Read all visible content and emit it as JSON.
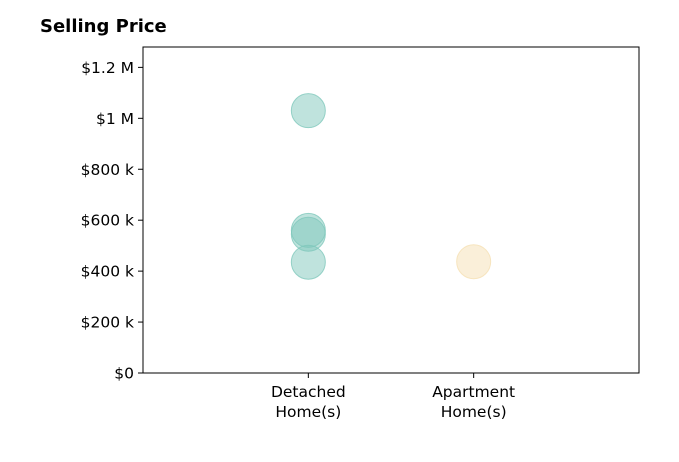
{
  "chart_data": {
    "type": "scatter",
    "title": "Selling Price",
    "xlabel": "",
    "ylabel": "",
    "categories": [
      "Detached\nHome(s)",
      "Apartment\nHome(s)"
    ],
    "xlim": [
      -1,
      2
    ],
    "ylim": [
      0,
      1280000
    ],
    "yticks": [
      0,
      200000,
      400000,
      600000,
      800000,
      1000000,
      1200000
    ],
    "ytick_labels": [
      "$0",
      "$200 k",
      "$400 k",
      "$600 k",
      "$800 k",
      "$1 M",
      "$1.2 M"
    ],
    "grid": false,
    "legend": "none",
    "series": [
      {
        "category": "Detached\nHome(s)",
        "color": "#7fc8bc",
        "values": [
          1030000,
          560000,
          545000,
          435000
        ]
      },
      {
        "category": "Apartment\nHome(s)",
        "color": "#f5e0b3",
        "values": [
          437000
        ]
      }
    ]
  }
}
